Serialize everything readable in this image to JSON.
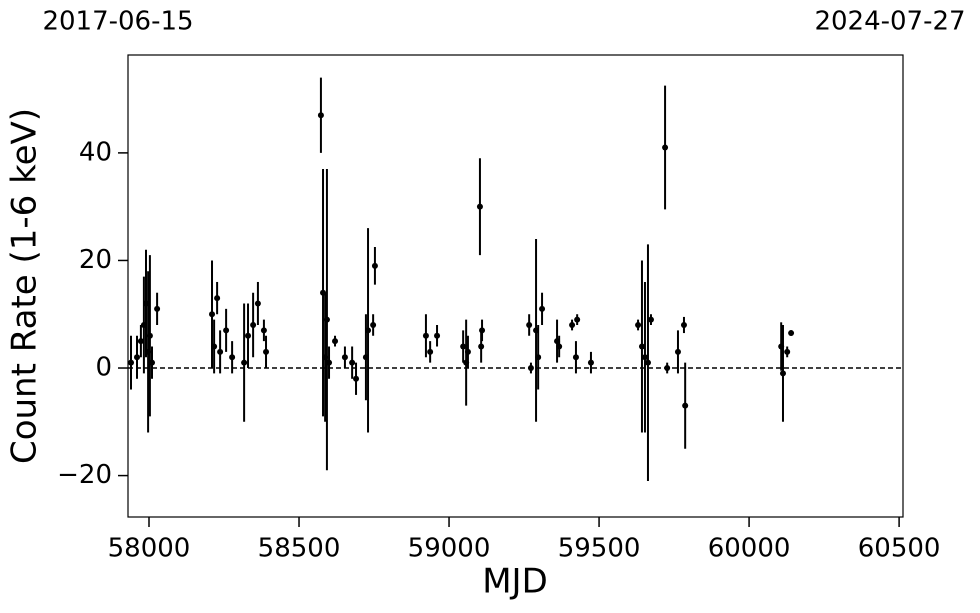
{
  "chart_data": {
    "type": "scatter",
    "xlabel": "MJD",
    "ylabel": "Count Rate (1-6 keV)",
    "annotations": [
      "2017-06-15",
      "2024-07-27"
    ],
    "xlim": [
      57930,
      60513
    ],
    "ylim": [
      -27.7,
      58.2
    ],
    "xticks": [
      58000,
      58500,
      59000,
      59500,
      60000,
      60500
    ],
    "yticks": [
      {
        "value": -20,
        "label": "−20"
      },
      0,
      20,
      40
    ],
    "hline": 0,
    "color": "#000000",
    "x": [
      57940,
      57960,
      57973,
      57983,
      57990,
      57997,
      58003,
      58010,
      58027,
      58210,
      58217,
      58227,
      58237,
      58257,
      58277,
      58317,
      58330,
      58347,
      58363,
      58383,
      58390,
      58573,
      58580,
      58587,
      58593,
      58600,
      58620,
      58653,
      58677,
      58690,
      58723,
      58730,
      58747,
      58753,
      58923,
      58937,
      58960,
      59047,
      59057,
      59063,
      59103,
      59107,
      59110,
      59267,
      59273,
      59290,
      59297,
      59310,
      59360,
      59367,
      59410,
      59427,
      59423,
      59473,
      59630,
      59643,
      59653,
      59663,
      59673,
      59720,
      59727,
      59763,
      59783,
      59787,
      60107,
      60113,
      60127,
      60140
    ],
    "values": [
      1,
      2,
      5,
      8,
      12,
      3,
      6,
      1,
      11,
      10,
      4,
      13,
      3,
      7,
      2,
      1,
      6,
      8,
      12,
      7,
      3,
      47,
      14,
      2,
      9,
      1,
      5,
      2,
      1,
      -2,
      2,
      7,
      8,
      19,
      6,
      3,
      6,
      4,
      1,
      3,
      30,
      4,
      7,
      8,
      0,
      7,
      2,
      11,
      5,
      4,
      8,
      9,
      2,
      1,
      8,
      4,
      2,
      1,
      9,
      41,
      0,
      3,
      8,
      -7,
      4,
      -1,
      3,
      6.5
    ],
    "errors": [
      5,
      4,
      3,
      9,
      10,
      15,
      15,
      3,
      3,
      10,
      5,
      3,
      4,
      4,
      3,
      11,
      6,
      6,
      4,
      2,
      3,
      7,
      23,
      12,
      28,
      3,
      1,
      2,
      3,
      3,
      8,
      19,
      2,
      3.5,
      4,
      2,
      2,
      3,
      8,
      3,
      9,
      3,
      2,
      2,
      1,
      17,
      6,
      3,
      4,
      2,
      1,
      1,
      3,
      2,
      1,
      16,
      14,
      22,
      1,
      11.5,
      1,
      4,
      1.5,
      8,
      4.5,
      9,
      1,
      0.5
    ]
  }
}
